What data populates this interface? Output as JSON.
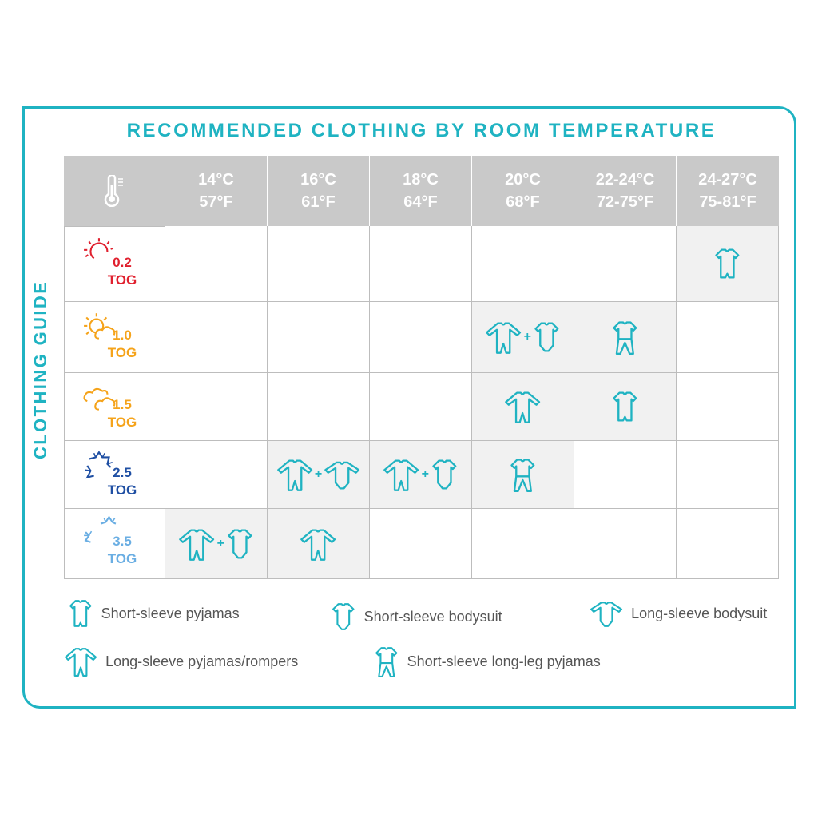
{
  "title": "RECOMMENDED CLOTHING BY ROOM TEMPERATURE",
  "side_label": "CLOTHING GUIDE",
  "colors": {
    "accent": "#1fb3c2",
    "header": "#c9c9c9",
    "shaded": "#f1f1f1"
  },
  "header_icon": "thermometer-icon",
  "columns": [
    {
      "c": "14°C",
      "f": "57°F"
    },
    {
      "c": "16°C",
      "f": "61°F"
    },
    {
      "c": "18°C",
      "f": "64°F"
    },
    {
      "c": "20°C",
      "f": "68°F"
    },
    {
      "c": "22-24°C",
      "f": "72-75°F"
    },
    {
      "c": "24-27°C",
      "f": "75-81°F"
    }
  ],
  "rows": [
    {
      "value": "0.2",
      "unit": "TOG",
      "icon": "hot-sun-icon",
      "color": "#e0202e",
      "cells": [
        [],
        [],
        [],
        [],
        [],
        [
          "ssp"
        ]
      ]
    },
    {
      "value": "1.0",
      "unit": "TOG",
      "icon": "sun-cloud-icon",
      "color": "#f5a31a",
      "cells": [
        [],
        [],
        [],
        [
          "lsp",
          "ssb"
        ],
        [
          "sslp"
        ],
        []
      ]
    },
    {
      "value": "1.5",
      "unit": "TOG",
      "icon": "clouds-icon",
      "color": "#f5a31a",
      "cells": [
        [],
        [],
        [],
        [
          "lsp"
        ],
        [
          "ssp"
        ],
        []
      ]
    },
    {
      "value": "2.5",
      "unit": "TOG",
      "icon": "snowflake-icon",
      "color": "#1f4fa3",
      "cells": [
        [],
        [
          "lsp",
          "lsb"
        ],
        [
          "lsp",
          "ssb"
        ],
        [
          "sslp"
        ],
        [],
        []
      ]
    },
    {
      "value": "3.5",
      "unit": "TOG",
      "icon": "snowflakes-icon",
      "color": "#6aaee3",
      "cells": [
        [
          "lsp",
          "ssb"
        ],
        [
          "lsp"
        ],
        [],
        [],
        [],
        []
      ]
    }
  ],
  "plus": "+",
  "legend": [
    {
      "key": "ssp",
      "label": "Short-sleeve pyjamas"
    },
    {
      "key": "ssb",
      "label": "Short-sleeve bodysuit"
    },
    {
      "key": "lsb",
      "label": "Long-sleeve bodysuit"
    },
    {
      "key": "lsp",
      "label": "Long-sleeve pyjamas/rompers"
    },
    {
      "key": "sslp",
      "label": "Short-sleeve long-leg pyjamas"
    }
  ]
}
